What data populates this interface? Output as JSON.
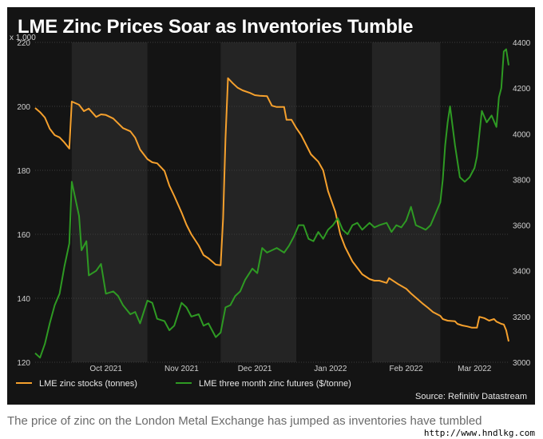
{
  "title": "LME Zinc Prices Soar as Inventories Tumble",
  "caption": "The price of zinc on the London Metal Exchange has jumped as inventories have tumbled",
  "watermark": "http://www.hndlkg.com",
  "colors": {
    "stocks": "#f5a02d",
    "futures": "#2e9a23",
    "background": "#141414",
    "band": "#242424"
  },
  "chart_data": {
    "type": "line",
    "left_axis_unit": "x 1,000",
    "source": "Source: Refinitiv Datastream",
    "x": {
      "ticks": [
        "Oct 2021",
        "Nov 2021",
        "Dec 2021",
        "Jan 2022",
        "Feb 2022",
        "Mar 2022"
      ],
      "start": "2021-09-16",
      "end": "2022-03-29"
    },
    "y_left": {
      "ylim": [
        120,
        220
      ],
      "ticks": [
        120,
        140,
        160,
        180,
        200,
        220
      ]
    },
    "y_right": {
      "ylim": [
        3000,
        4400
      ],
      "ticks": [
        3000,
        3200,
        3400,
        3600,
        3800,
        4000,
        4200,
        4400
      ]
    },
    "legend": {
      "position": "bottom"
    },
    "grid": true,
    "series": [
      {
        "name": "LME zinc stocks (tonnes)",
        "axis": "left",
        "points": [
          [
            "2021-09-16",
            199.5
          ],
          [
            "2021-09-18",
            198.2
          ],
          [
            "2021-09-20",
            196.5
          ],
          [
            "2021-09-22",
            193.0
          ],
          [
            "2021-09-24",
            191.0
          ],
          [
            "2021-09-26",
            190.3
          ],
          [
            "2021-09-28",
            188.7
          ],
          [
            "2021-09-30",
            186.8
          ],
          [
            "2021-10-01",
            201.5
          ],
          [
            "2021-10-04",
            200.5
          ],
          [
            "2021-10-06",
            198.5
          ],
          [
            "2021-10-08",
            199.3
          ],
          [
            "2021-10-11",
            196.7
          ],
          [
            "2021-10-13",
            197.5
          ],
          [
            "2021-10-15",
            197.3
          ],
          [
            "2021-10-18",
            196.2
          ],
          [
            "2021-10-20",
            194.7
          ],
          [
            "2021-10-22",
            193.2
          ],
          [
            "2021-10-25",
            192.2
          ],
          [
            "2021-10-27",
            190.2
          ],
          [
            "2021-10-29",
            186.5
          ],
          [
            "2021-11-01",
            183.5
          ],
          [
            "2021-11-03",
            182.5
          ],
          [
            "2021-11-05",
            182.2
          ],
          [
            "2021-11-08",
            179.8
          ],
          [
            "2021-11-10",
            175.2
          ],
          [
            "2021-11-12",
            172.0
          ],
          [
            "2021-11-15",
            166.8
          ],
          [
            "2021-11-17",
            163.0
          ],
          [
            "2021-11-19",
            160.0
          ],
          [
            "2021-11-22",
            156.5
          ],
          [
            "2021-11-24",
            153.5
          ],
          [
            "2021-11-26",
            152.5
          ],
          [
            "2021-11-29",
            150.5
          ],
          [
            "2021-12-01",
            150.3
          ],
          [
            "2021-12-02",
            165.0
          ],
          [
            "2021-12-03",
            190.0
          ],
          [
            "2021-12-04",
            208.8
          ],
          [
            "2021-12-06",
            207.2
          ],
          [
            "2021-12-08",
            205.8
          ],
          [
            "2021-12-10",
            205.0
          ],
          [
            "2021-12-13",
            204.2
          ],
          [
            "2021-12-15",
            203.5
          ],
          [
            "2021-12-17",
            203.3
          ],
          [
            "2021-12-20",
            203.2
          ],
          [
            "2021-12-22",
            200.2
          ],
          [
            "2021-12-24",
            199.8
          ],
          [
            "2021-12-27",
            199.8
          ],
          [
            "2021-12-28",
            195.8
          ],
          [
            "2021-12-30",
            195.8
          ],
          [
            "2022-01-01",
            193.2
          ],
          [
            "2022-01-03",
            191.0
          ],
          [
            "2022-01-05",
            188.0
          ],
          [
            "2022-01-07",
            185.0
          ],
          [
            "2022-01-10",
            182.7
          ],
          [
            "2022-01-12",
            180.0
          ],
          [
            "2022-01-14",
            173.5
          ],
          [
            "2022-01-17",
            167.0
          ],
          [
            "2022-01-19",
            160.0
          ],
          [
            "2022-01-21",
            156.0
          ],
          [
            "2022-01-24",
            151.5
          ],
          [
            "2022-01-26",
            149.5
          ],
          [
            "2022-01-28",
            147.5
          ],
          [
            "2022-01-31",
            146.0
          ],
          [
            "2022-02-02",
            145.5
          ],
          [
            "2022-02-04",
            145.5
          ],
          [
            "2022-02-07",
            144.8
          ],
          [
            "2022-02-08",
            146.3
          ],
          [
            "2022-02-10",
            145.3
          ],
          [
            "2022-02-12",
            144.3
          ],
          [
            "2022-02-15",
            143.0
          ],
          [
            "2022-02-17",
            141.5
          ],
          [
            "2022-02-19",
            140.2
          ],
          [
            "2022-02-22",
            138.2
          ],
          [
            "2022-02-24",
            137.0
          ],
          [
            "2022-02-26",
            135.7
          ],
          [
            "2022-03-01",
            134.5
          ],
          [
            "2022-03-02",
            133.5
          ],
          [
            "2022-03-04",
            133.0
          ],
          [
            "2022-03-07",
            132.8
          ],
          [
            "2022-03-08",
            132.0
          ],
          [
            "2022-03-10",
            131.5
          ],
          [
            "2022-03-12",
            131.2
          ],
          [
            "2022-03-14",
            130.8
          ],
          [
            "2022-03-16",
            130.8
          ],
          [
            "2022-03-17",
            134.2
          ],
          [
            "2022-03-19",
            133.8
          ],
          [
            "2022-03-21",
            133.0
          ],
          [
            "2022-03-23",
            133.5
          ],
          [
            "2022-03-24",
            132.7
          ],
          [
            "2022-03-26",
            132.0
          ],
          [
            "2022-03-27",
            131.8
          ],
          [
            "2022-03-28",
            130.0
          ],
          [
            "2022-03-29",
            126.5
          ]
        ]
      },
      {
        "name": "LME three month zinc futures ($/tonne)",
        "axis": "right",
        "points": [
          [
            "2021-09-16",
            3040
          ],
          [
            "2021-09-18",
            3020
          ],
          [
            "2021-09-20",
            3080
          ],
          [
            "2021-09-22",
            3170
          ],
          [
            "2021-09-24",
            3250
          ],
          [
            "2021-09-26",
            3300
          ],
          [
            "2021-09-28",
            3420
          ],
          [
            "2021-09-30",
            3520
          ],
          [
            "2021-10-01",
            3790
          ],
          [
            "2021-10-04",
            3640
          ],
          [
            "2021-10-05",
            3490
          ],
          [
            "2021-10-07",
            3530
          ],
          [
            "2021-10-08",
            3380
          ],
          [
            "2021-10-11",
            3400
          ],
          [
            "2021-10-13",
            3430
          ],
          [
            "2021-10-15",
            3300
          ],
          [
            "2021-10-18",
            3310
          ],
          [
            "2021-10-20",
            3290
          ],
          [
            "2021-10-22",
            3250
          ],
          [
            "2021-10-25",
            3210
          ],
          [
            "2021-10-27",
            3220
          ],
          [
            "2021-10-29",
            3170
          ],
          [
            "2021-11-01",
            3270
          ],
          [
            "2021-11-03",
            3260
          ],
          [
            "2021-11-05",
            3190
          ],
          [
            "2021-11-08",
            3180
          ],
          [
            "2021-11-10",
            3140
          ],
          [
            "2021-11-12",
            3160
          ],
          [
            "2021-11-15",
            3260
          ],
          [
            "2021-11-17",
            3240
          ],
          [
            "2021-11-19",
            3200
          ],
          [
            "2021-11-22",
            3210
          ],
          [
            "2021-11-24",
            3160
          ],
          [
            "2021-11-26",
            3170
          ],
          [
            "2021-11-29",
            3110
          ],
          [
            "2021-12-01",
            3130
          ],
          [
            "2021-12-03",
            3240
          ],
          [
            "2021-12-05",
            3250
          ],
          [
            "2021-12-07",
            3290
          ],
          [
            "2021-12-09",
            3310
          ],
          [
            "2021-12-11",
            3360
          ],
          [
            "2021-12-14",
            3410
          ],
          [
            "2021-12-16",
            3390
          ],
          [
            "2021-12-18",
            3500
          ],
          [
            "2021-12-20",
            3480
          ],
          [
            "2021-12-22",
            3490
          ],
          [
            "2021-12-24",
            3500
          ],
          [
            "2021-12-27",
            3480
          ],
          [
            "2021-12-29",
            3510
          ],
          [
            "2021-12-31",
            3550
          ],
          [
            "2022-01-02",
            3600
          ],
          [
            "2022-01-04",
            3600
          ],
          [
            "2022-01-06",
            3540
          ],
          [
            "2022-01-08",
            3530
          ],
          [
            "2022-01-10",
            3570
          ],
          [
            "2022-01-12",
            3540
          ],
          [
            "2022-01-14",
            3580
          ],
          [
            "2022-01-16",
            3600
          ],
          [
            "2022-01-18",
            3630
          ],
          [
            "2022-01-20",
            3580
          ],
          [
            "2022-01-22",
            3560
          ],
          [
            "2022-01-24",
            3600
          ],
          [
            "2022-01-26",
            3610
          ],
          [
            "2022-01-28",
            3580
          ],
          [
            "2022-01-31",
            3610
          ],
          [
            "2022-02-02",
            3590
          ],
          [
            "2022-02-04",
            3600
          ],
          [
            "2022-02-07",
            3610
          ],
          [
            "2022-02-09",
            3570
          ],
          [
            "2022-02-11",
            3600
          ],
          [
            "2022-02-13",
            3590
          ],
          [
            "2022-02-15",
            3620
          ],
          [
            "2022-02-17",
            3680
          ],
          [
            "2022-02-19",
            3600
          ],
          [
            "2022-02-21",
            3590
          ],
          [
            "2022-02-23",
            3580
          ],
          [
            "2022-02-25",
            3600
          ],
          [
            "2022-02-27",
            3650
          ],
          [
            "2022-03-01",
            3700
          ],
          [
            "2022-03-02",
            3800
          ],
          [
            "2022-03-03",
            3950
          ],
          [
            "2022-03-04",
            4050
          ],
          [
            "2022-03-05",
            4120
          ],
          [
            "2022-03-07",
            3950
          ],
          [
            "2022-03-09",
            3810
          ],
          [
            "2022-03-11",
            3790
          ],
          [
            "2022-03-13",
            3810
          ],
          [
            "2022-03-15",
            3850
          ],
          [
            "2022-03-16",
            3900
          ],
          [
            "2022-03-18",
            4100
          ],
          [
            "2022-03-20",
            4050
          ],
          [
            "2022-03-22",
            4080
          ],
          [
            "2022-03-24",
            4030
          ],
          [
            "2022-03-25",
            4160
          ],
          [
            "2022-03-26",
            4200
          ],
          [
            "2022-03-27",
            4360
          ],
          [
            "2022-03-28",
            4370
          ],
          [
            "2022-03-29",
            4300
          ]
        ]
      }
    ]
  }
}
